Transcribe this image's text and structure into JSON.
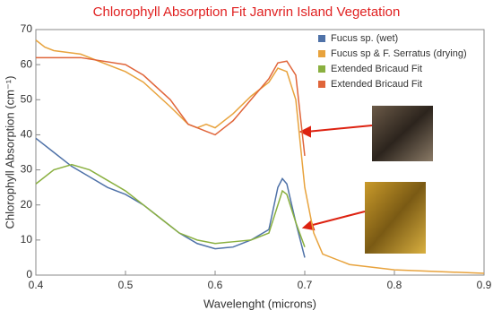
{
  "chart_data": {
    "type": "line",
    "title": "Chlorophyll Absorption Fit Janvrin Island Vegetation",
    "x_label": "Wavelenght (microns)",
    "y_label": "Chlorophyll Absorption (cm⁻¹)",
    "xlim": [
      0.4,
      0.9
    ],
    "xticks": [
      0.4,
      0.5,
      0.6,
      0.7,
      0.8,
      0.9
    ],
    "ylim": [
      0,
      70
    ],
    "yticks": [
      0,
      10,
      20,
      30,
      40,
      50,
      60,
      70
    ],
    "legend": "top-right",
    "series": [
      {
        "name": "Fucus sp. (wet)",
        "color": "#4f72a8",
        "x": [
          0.4,
          0.42,
          0.44,
          0.46,
          0.48,
          0.5,
          0.52,
          0.54,
          0.56,
          0.58,
          0.6,
          0.62,
          0.64,
          0.66,
          0.67,
          0.675,
          0.68,
          0.69,
          0.7
        ],
        "values": [
          39,
          35,
          31,
          28,
          25,
          23,
          20,
          16,
          12,
          9,
          7.5,
          8,
          10,
          13,
          25,
          27.5,
          26,
          15,
          5
        ]
      },
      {
        "name": "Fucus sp & F. Serratus (drying)",
        "color": "#e8a33d",
        "x": [
          0.4,
          0.41,
          0.42,
          0.45,
          0.5,
          0.52,
          0.55,
          0.57,
          0.58,
          0.59,
          0.6,
          0.62,
          0.64,
          0.66,
          0.67,
          0.68,
          0.69,
          0.7,
          0.71,
          0.72,
          0.75,
          0.8,
          0.85,
          0.9
        ],
        "values": [
          67,
          65,
          64,
          63,
          58,
          55,
          48,
          43,
          42,
          43,
          42,
          46,
          51,
          55,
          59,
          58,
          50,
          25,
          12,
          6,
          3,
          1.5,
          1,
          0.5
        ]
      },
      {
        "name": "Extended Bricaud Fit",
        "color": "#8ab040",
        "x": [
          0.4,
          0.42,
          0.44,
          0.46,
          0.48,
          0.5,
          0.52,
          0.54,
          0.56,
          0.58,
          0.6,
          0.62,
          0.64,
          0.66,
          0.67,
          0.675,
          0.68,
          0.69,
          0.7
        ],
        "values": [
          26,
          30,
          31.5,
          30,
          27,
          24,
          20,
          16,
          12,
          10,
          9,
          9.5,
          10,
          12,
          20,
          24,
          23,
          15,
          8
        ]
      },
      {
        "name": "Extended Bricaud Fit",
        "color": "#e0653a",
        "x": [
          0.4,
          0.45,
          0.5,
          0.52,
          0.55,
          0.57,
          0.58,
          0.59,
          0.6,
          0.62,
          0.64,
          0.66,
          0.67,
          0.68,
          0.69,
          0.7
        ],
        "values": [
          62,
          62,
          60,
          57,
          50,
          43,
          42,
          41,
          40,
          44,
          50,
          56,
          60.5,
          61,
          57,
          34
        ]
      }
    ]
  }
}
